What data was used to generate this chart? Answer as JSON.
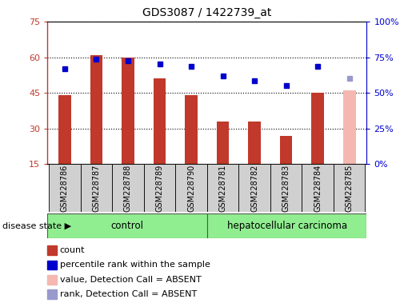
{
  "title": "GDS3087 / 1422739_at",
  "samples": [
    "GSM228786",
    "GSM228787",
    "GSM228788",
    "GSM228789",
    "GSM228790",
    "GSM228781",
    "GSM228782",
    "GSM228783",
    "GSM228784",
    "GSM228785"
  ],
  "bar_values": [
    44,
    61,
    60,
    51,
    44,
    33,
    33,
    27,
    45,
    46
  ],
  "bar_colors": [
    "#c0392b",
    "#c0392b",
    "#c0392b",
    "#c0392b",
    "#c0392b",
    "#c0392b",
    "#c0392b",
    "#c0392b",
    "#c0392b",
    "#f4b8b0"
  ],
  "dot_values_left_scale": [
    55,
    59,
    58.5,
    57,
    56,
    52,
    50,
    48,
    56,
    51
  ],
  "dot_colors": [
    "#0000cc",
    "#0000cc",
    "#0000cc",
    "#0000cc",
    "#0000cc",
    "#0000cc",
    "#0000cc",
    "#0000cc",
    "#0000cc",
    "#9999cc"
  ],
  "ylim_left": [
    15,
    75
  ],
  "ylim_right": [
    0,
    100
  ],
  "yticks_left": [
    15,
    30,
    45,
    60,
    75
  ],
  "yticks_right": [
    0,
    25,
    50,
    75,
    100
  ],
  "ytick_labels_right": [
    "0%",
    "25%",
    "50%",
    "75%",
    "100%"
  ],
  "group_labels": [
    "control",
    "hepatocellular carcinoma"
  ],
  "control_count": 5,
  "carcinoma_count": 5,
  "green_color": "#90ee90",
  "gray_color": "#d0d0d0",
  "disease_state_label": "disease state",
  "legend_items": [
    {
      "label": "count",
      "color": "#c0392b"
    },
    {
      "label": "percentile rank within the sample",
      "color": "#0000cc"
    },
    {
      "label": "value, Detection Call = ABSENT",
      "color": "#f4b8b0"
    },
    {
      "label": "rank, Detection Call = ABSENT",
      "color": "#9999cc"
    }
  ],
  "bar_width": 0.4,
  "title_fontsize": 10,
  "axis_fontsize": 8,
  "legend_fontsize": 8,
  "tick_label_fontsize": 7
}
